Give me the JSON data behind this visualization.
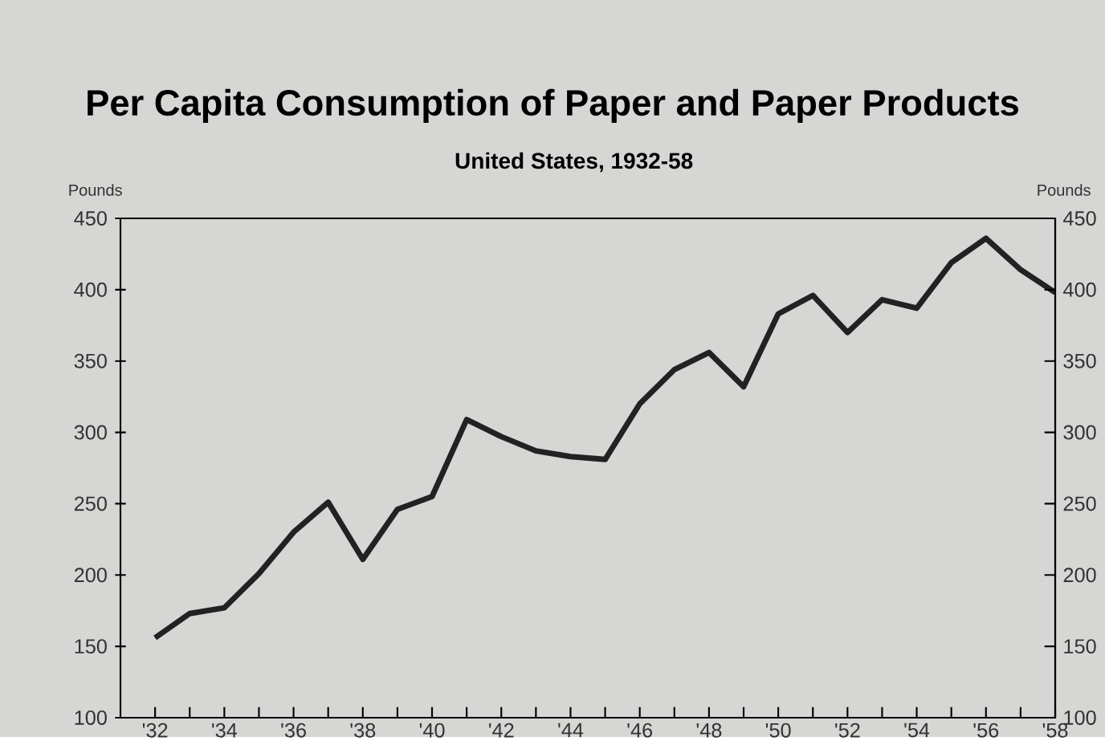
{
  "chart_data": {
    "type": "line",
    "title": "Per Capita Consumption of Paper and Paper Products",
    "subtitle": "United States, 1932-58",
    "ylabel": "Pounds",
    "y2label": "Pounds",
    "x": [
      1932,
      1933,
      1934,
      1935,
      1936,
      1937,
      1938,
      1939,
      1940,
      1941,
      1942,
      1943,
      1944,
      1945,
      1946,
      1947,
      1948,
      1949,
      1950,
      1951,
      1952,
      1953,
      1954,
      1955,
      1956,
      1957,
      1958
    ],
    "series": [
      {
        "color": "#222222",
        "values": [
          156,
          173,
          177,
          201,
          230,
          251,
          211,
          246,
          255,
          309,
          297,
          287,
          283,
          281,
          320,
          344,
          356,
          332,
          383,
          396,
          370,
          393,
          387,
          419,
          436,
          414,
          398
        ]
      }
    ],
    "xlim": [
      1931,
      1958
    ],
    "xticks": [
      {
        "value": 1932,
        "label": "'32"
      },
      {
        "value": 1933,
        "label": null
      },
      {
        "value": 1934,
        "label": "'34"
      },
      {
        "value": 1935,
        "label": null
      },
      {
        "value": 1936,
        "label": "'36"
      },
      {
        "value": 1937,
        "label": null
      },
      {
        "value": 1938,
        "label": "'38"
      },
      {
        "value": 1939,
        "label": null
      },
      {
        "value": 1940,
        "label": "'40"
      },
      {
        "value": 1941,
        "label": null
      },
      {
        "value": 1942,
        "label": "'42"
      },
      {
        "value": 1943,
        "label": null
      },
      {
        "value": 1944,
        "label": "'44"
      },
      {
        "value": 1945,
        "label": null
      },
      {
        "value": 1946,
        "label": "'46"
      },
      {
        "value": 1947,
        "label": null
      },
      {
        "value": 1948,
        "label": "'48"
      },
      {
        "value": 1949,
        "label": null
      },
      {
        "value": 1950,
        "label": "'50"
      },
      {
        "value": 1951,
        "label": null
      },
      {
        "value": 1952,
        "label": "'52"
      },
      {
        "value": 1953,
        "label": null
      },
      {
        "value": 1954,
        "label": "'54"
      },
      {
        "value": 1955,
        "label": null
      },
      {
        "value": 1956,
        "label": "'56"
      },
      {
        "value": 1957,
        "label": null
      },
      {
        "value": 1958,
        "label": "'58"
      }
    ],
    "ylim": [
      100,
      450
    ],
    "yticks": [
      100,
      150,
      200,
      250,
      300,
      350,
      400,
      450
    ],
    "y2lim": [
      100,
      450
    ],
    "y2ticks": [
      100,
      150,
      200,
      250,
      300,
      350,
      400,
      450
    ],
    "grid": false,
    "marker": "none",
    "line_style": "solid"
  }
}
